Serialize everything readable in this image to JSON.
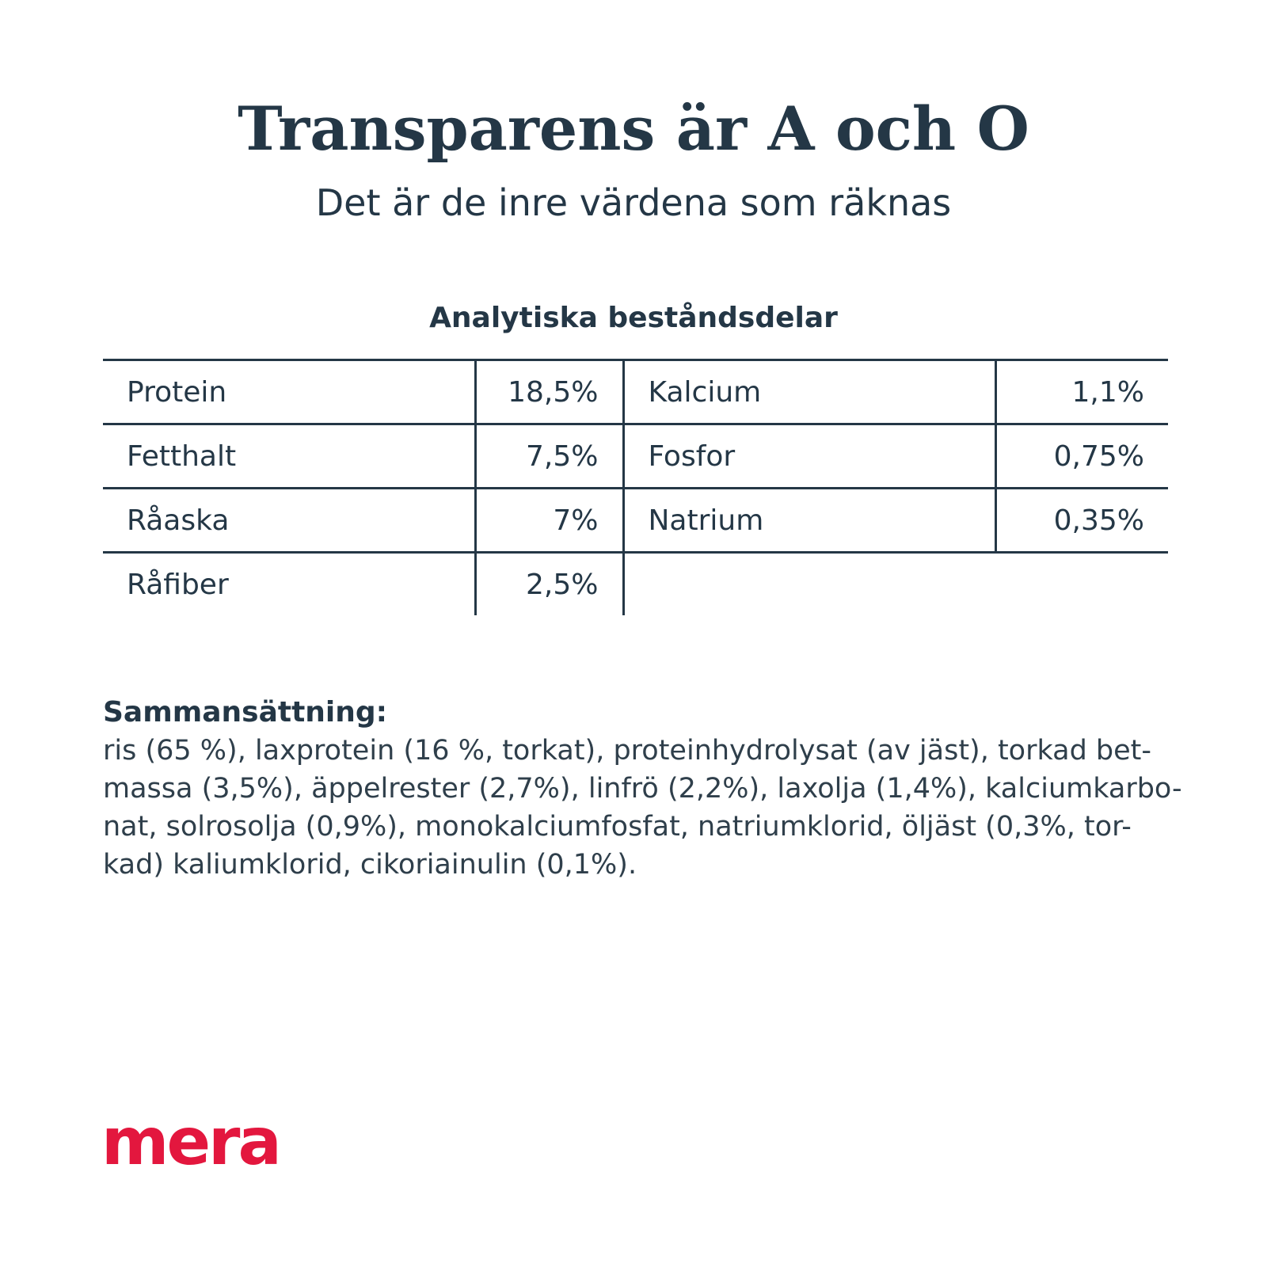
{
  "header": {
    "title": "Transparens är A och O",
    "subtitle": "Det är de inre värdena som räknas"
  },
  "analytics": {
    "heading": "Analytiska beståndsdelar",
    "rows": [
      {
        "name1": "Protein",
        "value1": "18,5%",
        "name2": "Kalcium",
        "value2": "1,1%"
      },
      {
        "name1": "Fetthalt",
        "value1": "7,5%",
        "name2": "Fosfor",
        "value2": "0,75%"
      },
      {
        "name1": "Råaska",
        "value1": "7%",
        "name2": "Natrium",
        "value2": "0,35%"
      },
      {
        "name1": "Råfiber",
        "value1": "2,5%",
        "name2": "",
        "value2": ""
      }
    ]
  },
  "composition": {
    "heading": "Sammansättning:",
    "lines": [
      "ris (65 %), laxprotein (16 %, torkat), proteinhydrolysat (av jäst), torkad bet-",
      "massa (3,5%), äppelrester (2,7%), linfrö (2,2%), laxolja (1,4%), kalciumkarbo-",
      "nat, solrosolja (0,9%), monokalciumfosfat, natriumklorid, öljäst (0,3%, tor-",
      "kad) kaliumklorid, cikoriainulin (0,1%)."
    ]
  },
  "brand": {
    "logo_text": "mera",
    "logo_color": "#e3173e",
    "text_color": "#243746"
  }
}
